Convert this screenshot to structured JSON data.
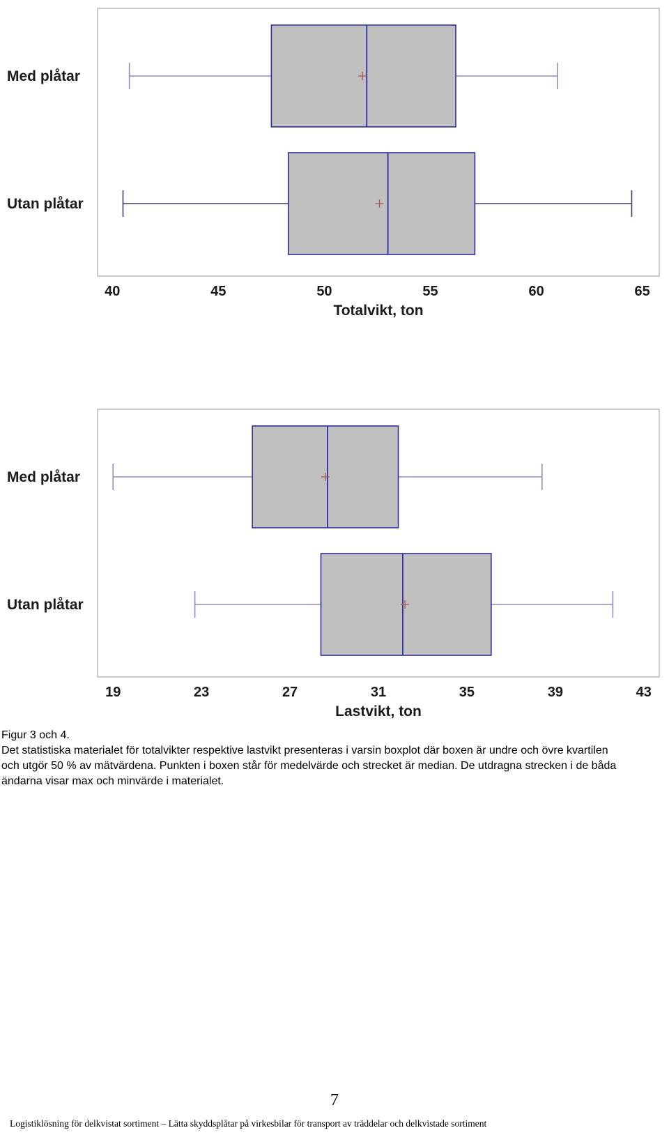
{
  "chart_data": [
    {
      "type": "boxplot",
      "orientation": "horizontal",
      "xlabel": "Totalvikt, ton",
      "xlim": [
        39.3,
        65.8
      ],
      "xticks": [
        40,
        45,
        50,
        55,
        60,
        65
      ],
      "categories": [
        "Med plåtar",
        "Utan plåtar"
      ],
      "series": [
        {
          "name": "Med plåtar",
          "min": 40.8,
          "q1": 47.5,
          "median": 52.0,
          "mean": 51.8,
          "q3": 56.2,
          "max": 61.0
        },
        {
          "name": "Utan plåtar",
          "min": 40.5,
          "q1": 48.3,
          "median": 53.0,
          "mean": 52.6,
          "q3": 57.1,
          "max": 64.5
        }
      ],
      "grid": false,
      "colors": {
        "box_fill": "#c0c0c0",
        "box_edge": "#2a2f9e",
        "whisker_med": "#8a8fc4",
        "whisker_utan": "#3a3f6e",
        "mean_marker": "#b05050"
      }
    },
    {
      "type": "boxplot",
      "orientation": "horizontal",
      "xlabel": "Lastvikt, ton",
      "xlim": [
        18.3,
        43.7
      ],
      "xticks": [
        19,
        23,
        27,
        31,
        35,
        39,
        43
      ],
      "categories": [
        "Med plåtar",
        "Utan plåtar"
      ],
      "series": [
        {
          "name": "Med plåtar",
          "min": 19.0,
          "q1": 25.3,
          "median": 28.7,
          "mean": 28.6,
          "q3": 31.9,
          "max": 38.4
        },
        {
          "name": "Utan plåtar",
          "min": 22.7,
          "q1": 28.4,
          "median": 32.1,
          "mean": 32.2,
          "q3": 36.1,
          "max": 41.6
        }
      ],
      "grid": false,
      "colors": {
        "box_fill": "#c0c0c0",
        "box_edge": "#2a2f9e",
        "whisker_med": "#8a8fc4",
        "whisker_utan": "#8a8fc4",
        "mean_marker": "#b05050"
      }
    }
  ],
  "caption": {
    "title": "Figur 3 och 4.",
    "lines": [
      "Det statistiska materialet för totalvikter respektive lastvikt presenteras i varsin boxplot där boxen är undre och övre kvartilen",
      "och utgör 50 % av mätvärdena. Punkten i boxen står för medelvärde och strecket är median. De utdragna strecken i de båda",
      "ändarna visar max och minvärde i materialet."
    ]
  },
  "page_number": "7",
  "footer": "Logistiklösning för delkvistat sortiment – Lätta skyddsplåtar på virkesbilar för transport av träddelar och delkvistade sortiment"
}
